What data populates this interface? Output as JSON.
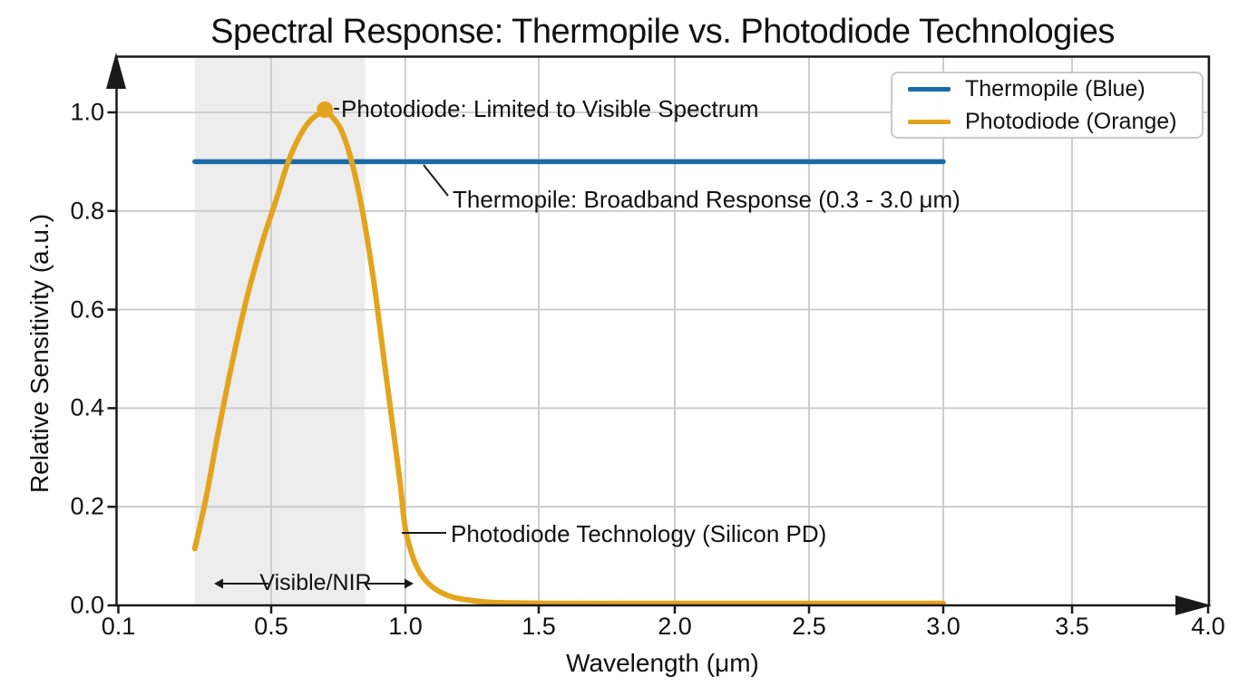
{
  "chart_data": {
    "type": "line",
    "title": "Spectral Response: Thermopile vs. Photodiode Technologies",
    "xlabel": "Wavelength (μm)",
    "ylabel": "Relative Sensitivity (a.u.)",
    "x_ticks": [
      0.1,
      0.5,
      1.0,
      1.5,
      2.0,
      2.5,
      3.0,
      3.5,
      4.0
    ],
    "x_tick_labels": [
      "0.1",
      "0.5",
      "1.0",
      "1.5",
      "2.0",
      "2.5",
      "3.0",
      "3.5",
      "4.0"
    ],
    "y_ticks": [
      0.0,
      0.2,
      0.4,
      0.6,
      0.8,
      1.0
    ],
    "y_tick_labels": [
      "0.0",
      "0.2",
      "0.4",
      "0.6",
      "0.8",
      "1.0"
    ],
    "xlim": [
      0.1,
      4.0
    ],
    "ylim": [
      0.0,
      1.1
    ],
    "grid": true,
    "legend_position": "upper right",
    "series": [
      {
        "name": "Thermopile (Blue)",
        "color": "#1b6ca6",
        "points": [
          [
            0.3,
            0.9
          ],
          [
            3.0,
            0.9
          ]
        ]
      },
      {
        "name": "Photodiode (Orange)",
        "color": "#e3a41d",
        "points": [
          [
            0.3,
            0.115
          ],
          [
            0.33,
            0.22
          ],
          [
            0.36,
            0.345
          ],
          [
            0.4,
            0.5
          ],
          [
            0.44,
            0.635
          ],
          [
            0.48,
            0.745
          ],
          [
            0.52,
            0.825
          ],
          [
            0.56,
            0.895
          ],
          [
            0.6,
            0.945
          ],
          [
            0.64,
            0.98
          ],
          [
            0.68,
            0.998
          ],
          [
            0.7,
            1.0
          ],
          [
            0.72,
            0.995
          ],
          [
            0.76,
            0.965
          ],
          [
            0.8,
            0.9
          ],
          [
            0.84,
            0.8
          ],
          [
            0.88,
            0.665
          ],
          [
            0.92,
            0.5
          ],
          [
            0.95,
            0.375
          ],
          [
            0.98,
            0.25
          ],
          [
            1.0,
            0.155
          ],
          [
            1.03,
            0.095
          ],
          [
            1.06,
            0.062
          ],
          [
            1.1,
            0.038
          ],
          [
            1.15,
            0.022
          ],
          [
            1.2,
            0.014
          ],
          [
            1.3,
            0.007
          ],
          [
            1.4,
            0.005
          ],
          [
            1.6,
            0.004
          ],
          [
            1.8,
            0.004
          ],
          [
            2.0,
            0.004
          ],
          [
            2.2,
            0.004
          ],
          [
            2.4,
            0.004
          ],
          [
            2.6,
            0.004
          ],
          [
            2.8,
            0.004
          ],
          [
            3.0,
            0.004
          ]
        ]
      }
    ],
    "peak_marker": {
      "x": 0.7,
      "y": 1.0
    },
    "shaded_band": {
      "from": 0.3,
      "to": 0.85,
      "label": "Visible/NIR",
      "color": "#ededed"
    },
    "annotations": [
      {
        "text": "Photodiode: Limited to Visible Spectrum",
        "x": 0.75,
        "y": 1.0
      },
      {
        "text": "Thermopile: Broadband Response (0.3 - 3.0 μm)",
        "x": 1.18,
        "y": 0.82
      },
      {
        "text": "Photodiode Technology (Silicon PD)",
        "x": 1.17,
        "y": 0.145
      }
    ],
    "colors": {
      "thermopile": "#1b6ca6",
      "photodiode": "#e3a41d",
      "grid": "#c9c9c9",
      "band": "#ededed",
      "axis": "#1a1a1a"
    }
  }
}
